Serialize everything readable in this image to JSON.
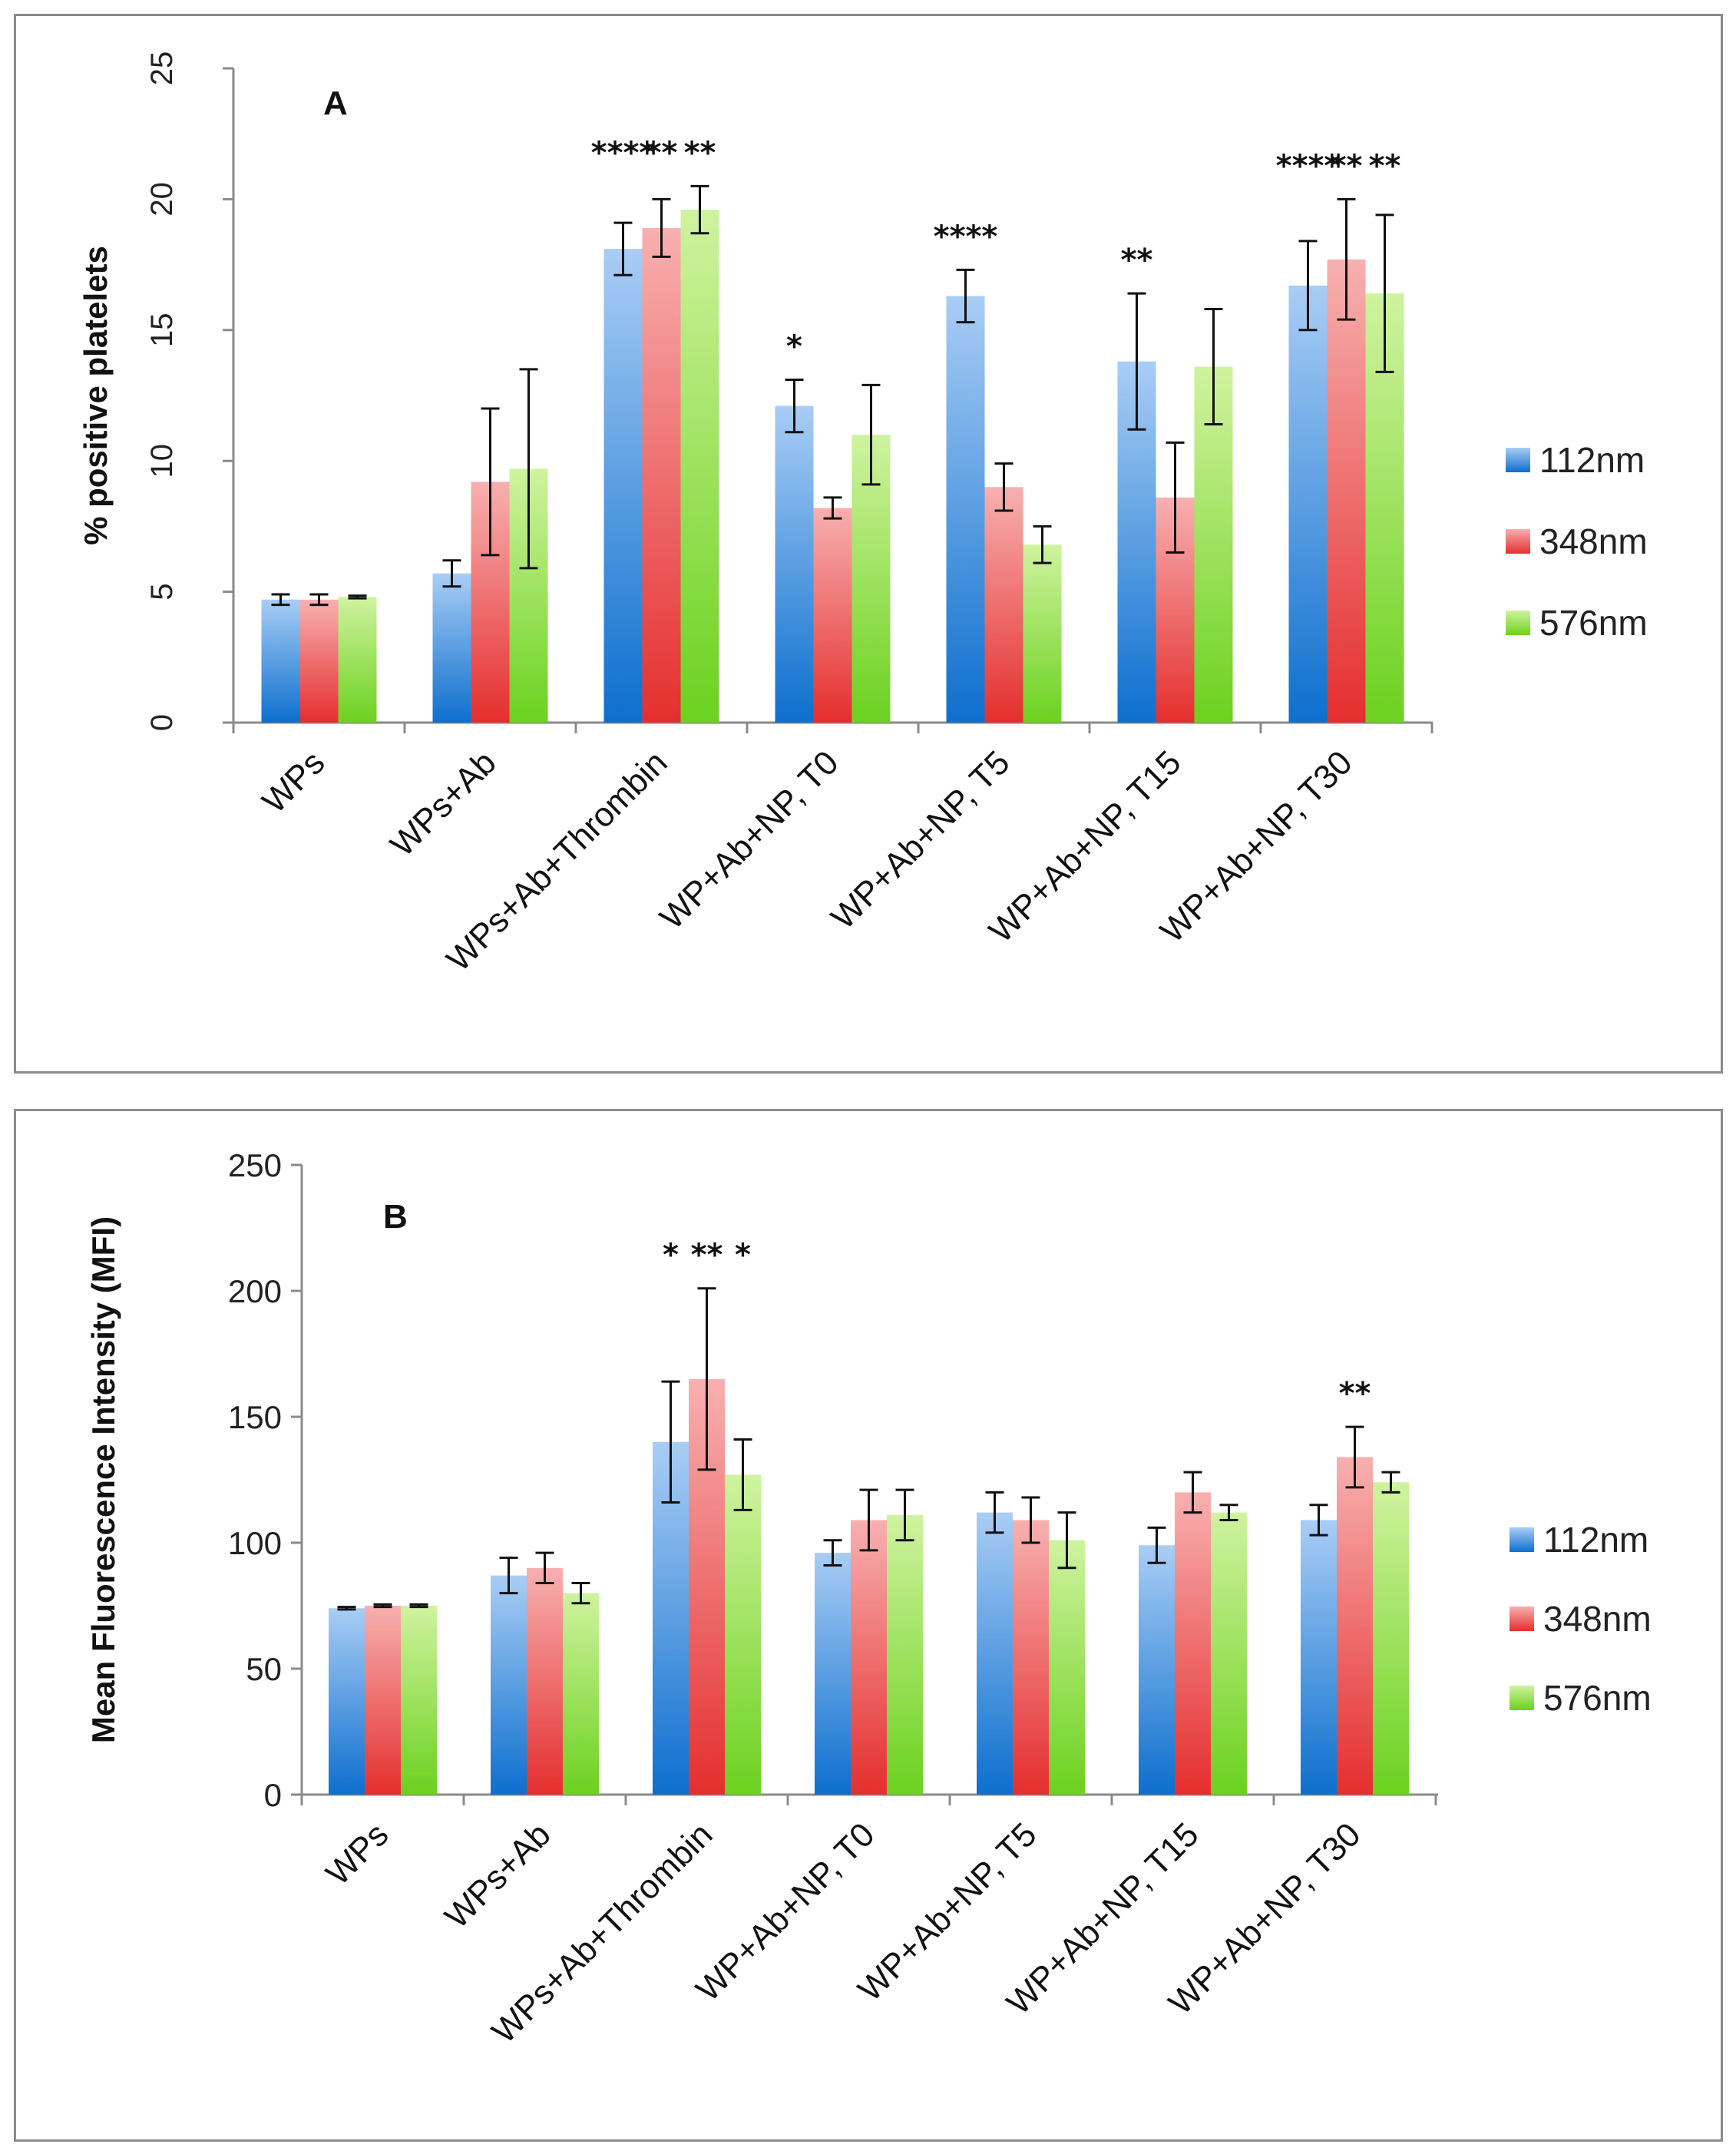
{
  "colors": {
    "112nm": [
      "#0d6fce",
      "#a9cdf5"
    ],
    "348nm": [
      "#e52e2e",
      "#f8b0b0"
    ],
    "576nm": [
      "#6cd11f",
      "#cff39f"
    ]
  },
  "chart_data": [
    {
      "id": "A",
      "type": "bar",
      "title": "",
      "panel_label": "A",
      "xlabel": "",
      "ylabel": "% positive platelets",
      "ylim": [
        0,
        25
      ],
      "yticks": [
        "0",
        "5",
        "10",
        "15",
        "20",
        "25"
      ],
      "ytick_values": [
        0,
        5,
        10,
        15,
        20,
        25
      ],
      "categories": [
        "WPs",
        "WPs+Ab",
        "WPs+Ab+Thrombin",
        "WP+Ab+NP, T0",
        "WP+Ab+NP, T5",
        "WP+Ab+NP, T15",
        "WP+Ab+NP, T30"
      ],
      "series": [
        {
          "name": "112nm",
          "values": [
            4.7,
            5.7,
            18.1,
            12.1,
            16.3,
            13.8,
            16.7
          ],
          "errors": [
            0.2,
            0.5,
            1.0,
            1.0,
            1.0,
            2.6,
            1.7
          ]
        },
        {
          "name": "348nm",
          "values": [
            4.7,
            9.2,
            18.9,
            8.2,
            9.0,
            8.6,
            17.7
          ],
          "errors": [
            0.2,
            2.8,
            1.1,
            0.4,
            0.9,
            2.1,
            2.3
          ]
        },
        {
          "name": "576nm",
          "values": [
            4.8,
            9.7,
            19.6,
            11.0,
            6.8,
            13.6,
            16.4
          ],
          "errors": [
            0.05,
            3.8,
            0.9,
            1.9,
            0.7,
            2.2,
            3.0
          ]
        }
      ],
      "significance": [
        {
          "category": 2,
          "labels": [
            "****",
            "**",
            "**"
          ]
        },
        {
          "category": 3,
          "labels": [
            "*",
            "",
            ""
          ]
        },
        {
          "category": 4,
          "labels": [
            "****",
            "",
            ""
          ]
        },
        {
          "category": 5,
          "labels": [
            "**",
            "",
            ""
          ]
        },
        {
          "category": 6,
          "labels": [
            "****",
            "**",
            "**"
          ]
        }
      ],
      "legend": [
        "112nm",
        "348nm",
        "576nm"
      ],
      "legend_position": "right",
      "grid": false
    },
    {
      "id": "B",
      "type": "bar",
      "title": "",
      "panel_label": "B",
      "xlabel": "",
      "ylabel": "Mean Fluorescence Intensity (MFI)",
      "ylim": [
        0,
        250
      ],
      "yticks": [
        "0",
        "50",
        "100",
        "150",
        "200",
        "250"
      ],
      "ytick_values": [
        0,
        50,
        100,
        150,
        200,
        250
      ],
      "categories": [
        "WPs",
        "WPs+Ab",
        "WPs+Ab+Thrombin",
        "WP+Ab+NP, T0",
        "WP+Ab+NP, T5",
        "WP+Ab+NP, T15",
        "WP+Ab+NP, T30"
      ],
      "series": [
        {
          "name": "112nm",
          "values": [
            74,
            87,
            140,
            96,
            112,
            99,
            109
          ],
          "errors": [
            0.5,
            7,
            24,
            5,
            8,
            7,
            6
          ]
        },
        {
          "name": "348nm",
          "values": [
            75,
            90,
            165,
            109,
            109,
            120,
            134
          ],
          "errors": [
            0.5,
            6,
            36,
            12,
            9,
            8,
            12
          ]
        },
        {
          "name": "576nm",
          "values": [
            75,
            80,
            127,
            111,
            101,
            112,
            124
          ],
          "errors": [
            0.5,
            4,
            14,
            10,
            11,
            3,
            4
          ]
        }
      ],
      "significance": [
        {
          "category": 2,
          "labels": [
            "*",
            "**",
            "*"
          ]
        },
        {
          "category": 6,
          "labels": [
            "",
            "**",
            ""
          ]
        }
      ],
      "legend": [
        "112nm",
        "348nm",
        "576nm"
      ],
      "legend_position": "right",
      "grid": false
    }
  ]
}
